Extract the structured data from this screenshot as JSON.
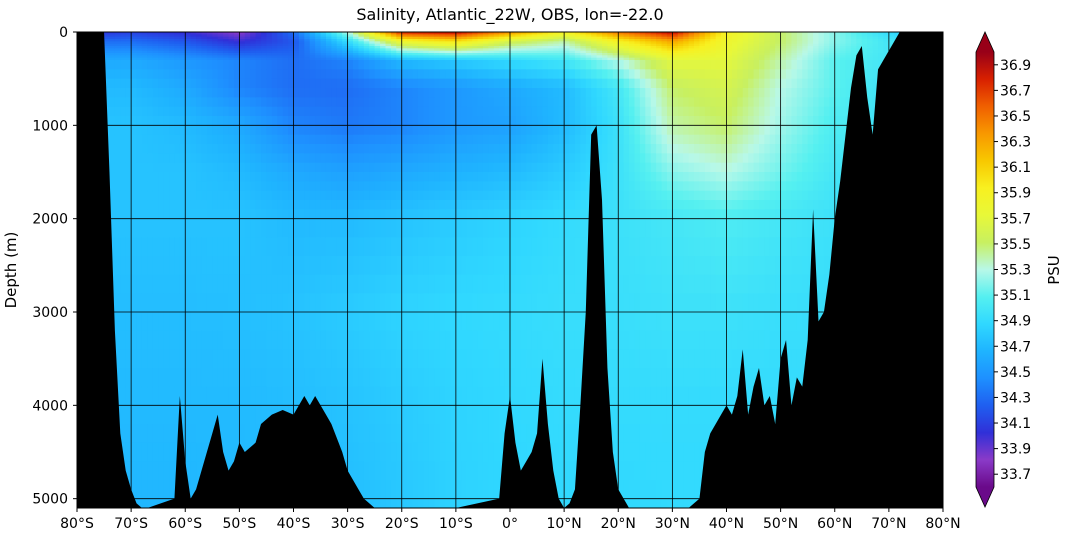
{
  "chart_data": {
    "type": "heatmap",
    "title": "Salinity, Atlantic_22W, OBS, lon=-22.0",
    "ylabel": "Depth (m)",
    "xlabel": "",
    "xlim": [
      -80,
      80
    ],
    "ylim": [
      5100,
      0
    ],
    "x_ticks": [
      -80,
      -70,
      -60,
      -50,
      -40,
      -30,
      -20,
      -10,
      0,
      10,
      20,
      30,
      40,
      50,
      60,
      70,
      80
    ],
    "x_tick_labels": [
      "80°S",
      "70°S",
      "60°S",
      "50°S",
      "40°S",
      "30°S",
      "20°S",
      "10°S",
      "0°",
      "10°N",
      "20°N",
      "30°N",
      "40°N",
      "50°N",
      "60°N",
      "70°N",
      "80°N"
    ],
    "y_ticks": [
      0,
      1000,
      2000,
      3000,
      4000,
      5000
    ],
    "y_tick_labels": [
      "0",
      "1000",
      "2000",
      "3000",
      "4000",
      "5000"
    ],
    "grid": true,
    "colorbar": {
      "label": "PSU",
      "min": 33.6,
      "max": 37.0,
      "extend": "both",
      "ticks": [
        33.7,
        33.9,
        34.1,
        34.3,
        34.5,
        34.7,
        34.9,
        35.1,
        35.3,
        35.5,
        35.7,
        35.9,
        36.1,
        36.3,
        36.5,
        36.7,
        36.9
      ],
      "tick_labels": [
        "33.7",
        "33.9",
        "34.1",
        "34.3",
        "34.5",
        "34.7",
        "34.9",
        "35.1",
        "35.3",
        "35.5",
        "35.7",
        "35.9",
        "36.1",
        "36.3",
        "36.5",
        "36.7",
        "36.9"
      ],
      "colors": [
        "#6a0a8a",
        "#8a3ac8",
        "#3030d8",
        "#1f5ff0",
        "#1e90ff",
        "#1fb4ff",
        "#30d8ff",
        "#55f0f0",
        "#b8f8e8",
        "#c8f060",
        "#e8f838",
        "#f8f020",
        "#f8c800",
        "#f89800",
        "#f06000",
        "#d82000",
        "#980018"
      ]
    },
    "salinity_field": {
      "lat_nodes": [
        -80,
        -70,
        -60,
        -50,
        -40,
        -30,
        -20,
        -10,
        0,
        10,
        20,
        30,
        40,
        50,
        60,
        70,
        80
      ],
      "depth_nodes": [
        0,
        100,
        300,
        600,
        1000,
        1500,
        2000,
        3000,
        4000,
        5000
      ],
      "values": [
        [
          34.0,
          34.1,
          34.0,
          33.8,
          34.3,
          35.3,
          36.8,
          36.9,
          36.4,
          35.9,
          36.5,
          36.9,
          35.9,
          35.5,
          35.2,
          34.9,
          34.6
        ],
        [
          34.3,
          34.3,
          34.2,
          34.0,
          34.2,
          34.9,
          35.8,
          36.0,
          35.6,
          35.4,
          35.9,
          36.3,
          35.8,
          35.5,
          35.2,
          35.0,
          34.9
        ],
        [
          34.6,
          34.6,
          34.5,
          34.4,
          34.3,
          34.4,
          34.7,
          34.8,
          34.9,
          35.0,
          35.3,
          35.7,
          35.7,
          35.4,
          35.1,
          35.0,
          34.9
        ],
        [
          34.7,
          34.7,
          34.6,
          34.4,
          34.3,
          34.3,
          34.4,
          34.5,
          34.6,
          34.7,
          35.0,
          35.5,
          35.6,
          35.3,
          35.1,
          34.95,
          34.9
        ],
        [
          34.75,
          34.75,
          34.7,
          34.6,
          34.4,
          34.35,
          34.4,
          34.5,
          34.55,
          34.7,
          34.95,
          35.4,
          35.5,
          35.25,
          35.05,
          34.95,
          34.9
        ],
        [
          34.75,
          34.75,
          34.75,
          34.7,
          34.6,
          34.55,
          34.6,
          34.65,
          34.7,
          34.8,
          34.95,
          35.2,
          35.3,
          35.15,
          35.0,
          34.93,
          34.9
        ],
        [
          34.75,
          34.75,
          34.75,
          34.75,
          34.7,
          34.7,
          34.75,
          34.8,
          34.85,
          34.9,
          34.95,
          35.0,
          35.05,
          35.0,
          34.95,
          34.92,
          34.9
        ],
        [
          34.72,
          34.72,
          34.72,
          34.73,
          34.75,
          34.8,
          34.85,
          34.88,
          34.9,
          34.92,
          34.93,
          34.95,
          34.95,
          34.93,
          34.92,
          34.91,
          34.9
        ],
        [
          34.7,
          34.7,
          34.7,
          34.7,
          34.72,
          34.75,
          34.8,
          34.85,
          34.88,
          34.9,
          34.9,
          34.9,
          34.9,
          34.9,
          34.9,
          34.9,
          34.9
        ],
        [
          34.68,
          34.68,
          34.68,
          34.7,
          34.7,
          34.72,
          34.78,
          34.84,
          34.87,
          34.88,
          34.88,
          34.89,
          34.89,
          34.89,
          34.89,
          34.89,
          34.89
        ]
      ]
    },
    "bathymetry": {
      "lat": [
        -80,
        -75,
        -74,
        -73,
        -72,
        -71,
        -70,
        -69,
        -68,
        -67,
        -62,
        -61,
        -60,
        -59,
        -58,
        -55,
        -54,
        -53,
        -52,
        -51,
        -50,
        -49,
        -47,
        -46,
        -44,
        -42,
        -40,
        -38,
        -37,
        -36,
        -34,
        -33,
        -31,
        -30,
        -28,
        -27,
        -25,
        -22,
        -20,
        -10,
        -2,
        -1,
        0,
        1,
        2,
        3,
        4,
        5,
        6,
        7,
        8,
        9,
        10,
        11,
        12,
        13,
        14,
        15,
        16,
        17,
        18,
        19,
        20,
        22,
        24,
        26,
        28,
        30,
        33,
        35,
        36,
        37,
        38,
        39,
        40,
        41,
        42,
        43,
        44,
        45,
        46,
        47,
        48,
        49,
        50,
        51,
        52,
        53,
        54,
        55,
        56,
        57,
        58,
        59,
        60,
        61,
        62,
        63,
        64,
        65,
        66,
        67,
        68,
        69,
        70,
        71,
        72,
        73,
        74,
        75,
        76,
        80
      ],
      "depth": [
        0,
        0,
        1500,
        3200,
        4300,
        4700,
        4900,
        5050,
        5100,
        5100,
        5000,
        3900,
        4600,
        5000,
        4900,
        4300,
        4100,
        4500,
        4700,
        4600,
        4400,
        4500,
        4400,
        4200,
        4100,
        4050,
        4100,
        3900,
        4000,
        3900,
        4100,
        4200,
        4500,
        4700,
        4900,
        5000,
        5100,
        5100,
        5100,
        5100,
        5000,
        4300,
        3900,
        4400,
        4700,
        4600,
        4500,
        4300,
        3500,
        4200,
        4700,
        5000,
        5100,
        5050,
        4900,
        4000,
        3000,
        1100,
        1000,
        1800,
        3600,
        4500,
        4900,
        5100,
        5100,
        5100,
        5100,
        5100,
        5100,
        5000,
        4500,
        4300,
        4200,
        4100,
        4000,
        4100,
        3900,
        3400,
        4100,
        3800,
        3600,
        4000,
        3900,
        4200,
        3500,
        3300,
        4000,
        3700,
        3800,
        3300,
        1900,
        3100,
        3000,
        2600,
        2000,
        1600,
        1100,
        600,
        250,
        150,
        700,
        1100,
        400,
        300,
        200,
        100,
        0,
        0,
        0,
        0,
        0,
        0
      ]
    }
  }
}
